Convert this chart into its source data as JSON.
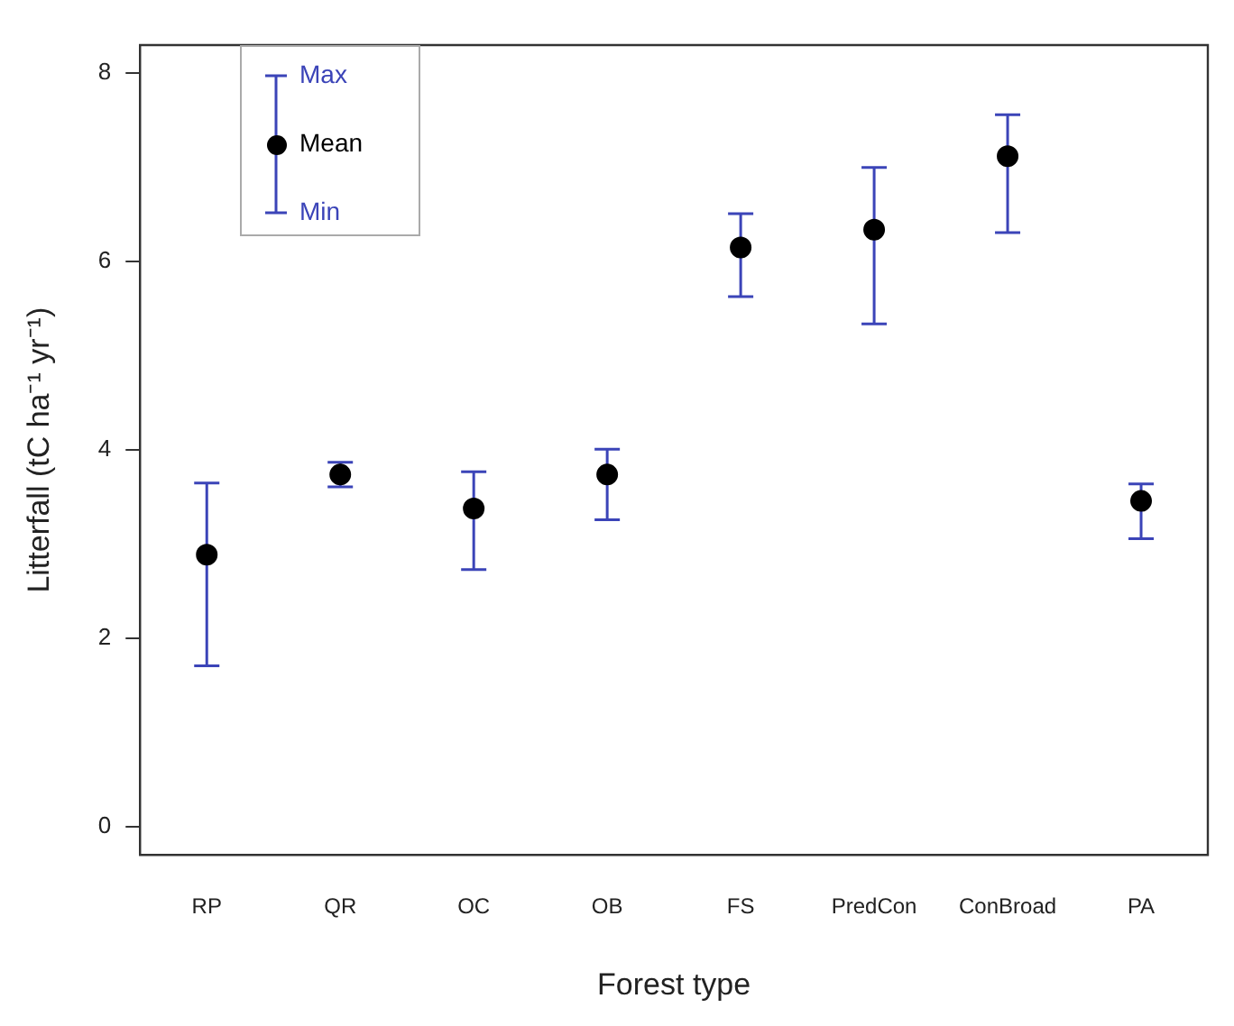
{
  "chart_data": {
    "type": "scatter",
    "xlabel": "Forest type",
    "ylabel": "Litterfall (tC ha⁻¹ yr⁻¹)",
    "categories": [
      "RP",
      "QR",
      "OC",
      "OB",
      "FS",
      "PredCon",
      "ConBroad",
      "PA"
    ],
    "series": [
      {
        "name": "Mean",
        "color": "#000000",
        "values": [
          2.89,
          3.74,
          3.38,
          3.74,
          6.15,
          6.34,
          7.12,
          3.46
        ],
        "errors": [
          [
            1.71,
            3.65
          ],
          [
            3.61,
            3.87
          ],
          [
            2.73,
            3.77
          ],
          [
            3.26,
            4.01
          ],
          [
            5.63,
            6.51
          ],
          [
            5.34,
            7.0
          ],
          [
            6.31,
            7.56
          ],
          [
            3.06,
            3.64
          ]
        ]
      }
    ],
    "ylim": [
      -0.3,
      8.3
    ],
    "yticks": [
      0,
      2,
      4,
      6,
      8
    ],
    "grid": false,
    "marker": "circle",
    "legend": "top left",
    "annotations": [
      "Max",
      "Min"
    ]
  }
}
